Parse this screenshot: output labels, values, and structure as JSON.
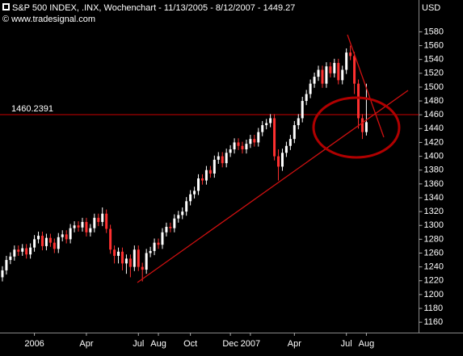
{
  "chart_data": {
    "type": "candlestick",
    "title": "S&P 500 INDEX, .INX, Wochenchart - 11/13/2005 - 8/12/2007 - 1449.27",
    "subtitle": "© www.tradesignal.com",
    "y_axis_label": "USD",
    "categories": [
      null,
      null,
      null,
      null,
      null,
      null,
      null,
      null,
      "2006",
      null,
      null,
      null,
      null,
      null,
      null,
      null,
      null,
      null,
      null,
      null,
      null,
      "Apr",
      null,
      null,
      null,
      null,
      null,
      null,
      null,
      null,
      null,
      null,
      null,
      null,
      "Jul",
      null,
      null,
      null,
      null,
      "Aug",
      null,
      null,
      null,
      null,
      null,
      null,
      null,
      "Oct",
      null,
      null,
      null,
      null,
      null,
      null,
      null,
      null,
      null,
      "Dec",
      null,
      null,
      null,
      null,
      "2007",
      null,
      null,
      null,
      null,
      null,
      null,
      null,
      null,
      null,
      null,
      "Apr",
      null,
      null,
      null,
      null,
      null,
      null,
      null,
      null,
      null,
      null,
      null,
      null,
      "Jul",
      null,
      null,
      null,
      null,
      "Aug"
    ],
    "open": [
      1225,
      1235,
      1250,
      1255,
      1265,
      1262,
      1267,
      1258,
      1268,
      1280,
      1285,
      1270,
      1282,
      1275,
      1266,
      1283,
      1287,
      1280,
      1296,
      1300,
      1297,
      1305,
      1290,
      1296,
      1311,
      1305,
      1317,
      1295,
      1265,
      1256,
      1262,
      1245,
      1252,
      1240,
      1265,
      1240,
      1236,
      1260,
      1263,
      1275,
      1272,
      1290,
      1298,
      1296,
      1310,
      1315,
      1320,
      1335,
      1345,
      1350,
      1368,
      1365,
      1380,
      1375,
      1395,
      1400,
      1390,
      1405,
      1410,
      1420,
      1415,
      1410,
      1418,
      1425,
      1420,
      1435,
      1445,
      1448,
      1455,
      1400,
      1385,
      1405,
      1415,
      1425,
      1445,
      1455,
      1480,
      1490,
      1505,
      1515,
      1525,
      1505,
      1530,
      1520,
      1535,
      1510,
      1525,
      1550,
      1545,
      1505,
      1455,
      1435
    ],
    "high": [
      1241,
      1256,
      1261,
      1271,
      1271,
      1273,
      1273,
      1274,
      1286,
      1291,
      1291,
      1288,
      1288,
      1281,
      1289,
      1293,
      1293,
      1302,
      1306,
      1306,
      1311,
      1311,
      1302,
      1317,
      1317,
      1326,
      1323,
      1301,
      1271,
      1268,
      1268,
      1258,
      1258,
      1271,
      1271,
      1246,
      1266,
      1269,
      1281,
      1281,
      1296,
      1304,
      1304,
      1316,
      1321,
      1326,
      1341,
      1351,
      1356,
      1374,
      1374,
      1386,
      1386,
      1401,
      1406,
      1406,
      1411,
      1416,
      1426,
      1426,
      1421,
      1424,
      1431,
      1431,
      1441,
      1451,
      1454,
      1461,
      1461,
      1410,
      1411,
      1421,
      1431,
      1451,
      1461,
      1486,
      1496,
      1511,
      1521,
      1531,
      1531,
      1536,
      1536,
      1541,
      1541,
      1531,
      1556,
      1560,
      1551,
      1511,
      1461,
      1505
    ],
    "low": [
      1219,
      1229,
      1244,
      1249,
      1256,
      1256,
      1252,
      1252,
      1262,
      1274,
      1264,
      1264,
      1269,
      1260,
      1260,
      1277,
      1274,
      1274,
      1290,
      1291,
      1291,
      1284,
      1284,
      1290,
      1299,
      1299,
      1289,
      1259,
      1245,
      1245,
      1235,
      1230,
      1225,
      1234,
      1234,
      1219,
      1230,
      1254,
      1257,
      1266,
      1266,
      1284,
      1290,
      1290,
      1304,
      1309,
      1314,
      1329,
      1339,
      1344,
      1359,
      1359,
      1369,
      1369,
      1389,
      1384,
      1384,
      1399,
      1404,
      1409,
      1404,
      1404,
      1412,
      1414,
      1414,
      1429,
      1439,
      1442,
      1394,
      1365,
      1379,
      1399,
      1409,
      1419,
      1439,
      1449,
      1474,
      1484,
      1499,
      1509,
      1499,
      1499,
      1514,
      1514,
      1504,
      1504,
      1519,
      1539,
      1490,
      1440,
      1425,
      1430
    ],
    "close": [
      1235,
      1250,
      1255,
      1265,
      1262,
      1267,
      1258,
      1268,
      1280,
      1285,
      1270,
      1282,
      1275,
      1266,
      1283,
      1287,
      1280,
      1296,
      1300,
      1297,
      1305,
      1290,
      1296,
      1311,
      1305,
      1317,
      1295,
      1265,
      1256,
      1262,
      1245,
      1252,
      1240,
      1265,
      1240,
      1236,
      1260,
      1263,
      1275,
      1272,
      1290,
      1298,
      1296,
      1310,
      1315,
      1320,
      1335,
      1345,
      1350,
      1368,
      1365,
      1380,
      1375,
      1395,
      1400,
      1390,
      1405,
      1410,
      1420,
      1415,
      1410,
      1418,
      1425,
      1420,
      1435,
      1445,
      1448,
      1455,
      1400,
      1385,
      1405,
      1415,
      1425,
      1445,
      1455,
      1480,
      1490,
      1505,
      1515,
      1525,
      1505,
      1530,
      1520,
      1535,
      1510,
      1525,
      1550,
      1545,
      1505,
      1455,
      1435,
      1449.27
    ],
    "up_color": "#ffffff",
    "down_color": "#ff3030",
    "hline": 1460.2391,
    "hline_color": "#cc0000",
    "ylim": [
      1145,
      1612
    ],
    "yticks": [
      1160,
      1180,
      1200,
      1220,
      1240,
      1260,
      1280,
      1300,
      1320,
      1340,
      1360,
      1380,
      1400,
      1420,
      1440,
      1460,
      1480,
      1500,
      1520,
      1540,
      1560,
      1580
    ]
  }
}
